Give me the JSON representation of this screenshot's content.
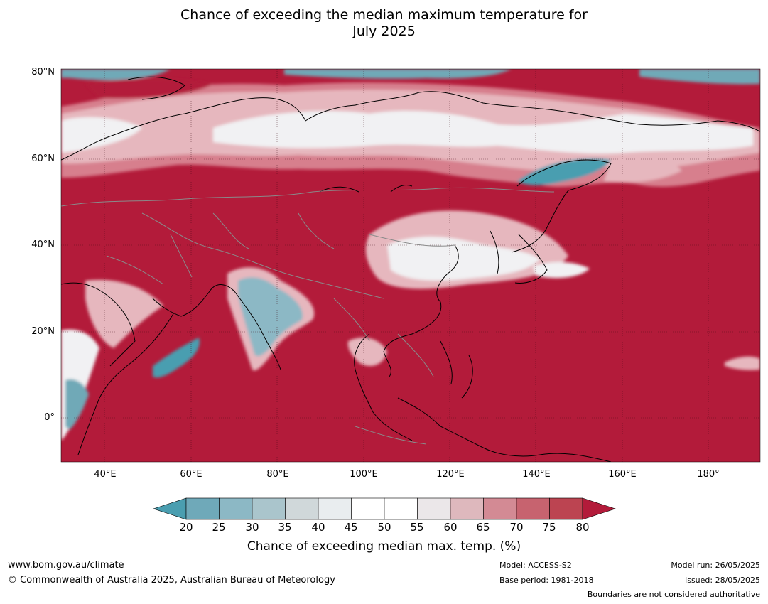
{
  "title_line1": "Chance of exceeding the median maximum temperature for",
  "title_line2": "July 2025",
  "map": {
    "lat_labels": [
      "80°N",
      "60°N",
      "40°N",
      "20°N",
      "0°"
    ],
    "lon_labels": [
      "40°E",
      "60°E",
      "80°E",
      "100°E",
      "120°E",
      "140°E",
      "160°E",
      "180°"
    ],
    "lat_range": [
      -10,
      80
    ],
    "lon_range": [
      30,
      192
    ],
    "colors": {
      "high": "#b31b3a",
      "mid_high": "#d77f8d",
      "light": "#e6b7be",
      "neutral": "#f1f1f3",
      "low": "#6fa9b7",
      "low_strong": "#4a9eb0",
      "sea_grid": "#5a1020"
    }
  },
  "colorbar": {
    "ticks": [
      "20",
      "25",
      "30",
      "35",
      "40",
      "45",
      "50",
      "55",
      "60",
      "65",
      "70",
      "75",
      "80"
    ],
    "colors": [
      "#6fa9b9",
      "#8cb8c5",
      "#aac5cc",
      "#d0d8da",
      "#e9edef",
      "#ffffff",
      "#ffffff",
      "#ebe7e9",
      "#deb8bd",
      "#d38a94",
      "#c7636f",
      "#bc4451"
    ],
    "under_color": "#4a9eb0",
    "over_color": "#b31b3a",
    "label": "Chance of exceeding median max. temp. (%)"
  },
  "footer": {
    "website": "www.bom.gov.au/climate",
    "copyright": "© Commonwealth of Australia 2025, Australian Bureau of Meteorology",
    "model": "Model: ACCESS-S2",
    "base_period": "Base period: 1981-2018",
    "model_run": "Model run: 26/05/2025",
    "issued": "Issued: 28/05/2025",
    "disclaimer": "Boundaries are not considered authoritative"
  }
}
